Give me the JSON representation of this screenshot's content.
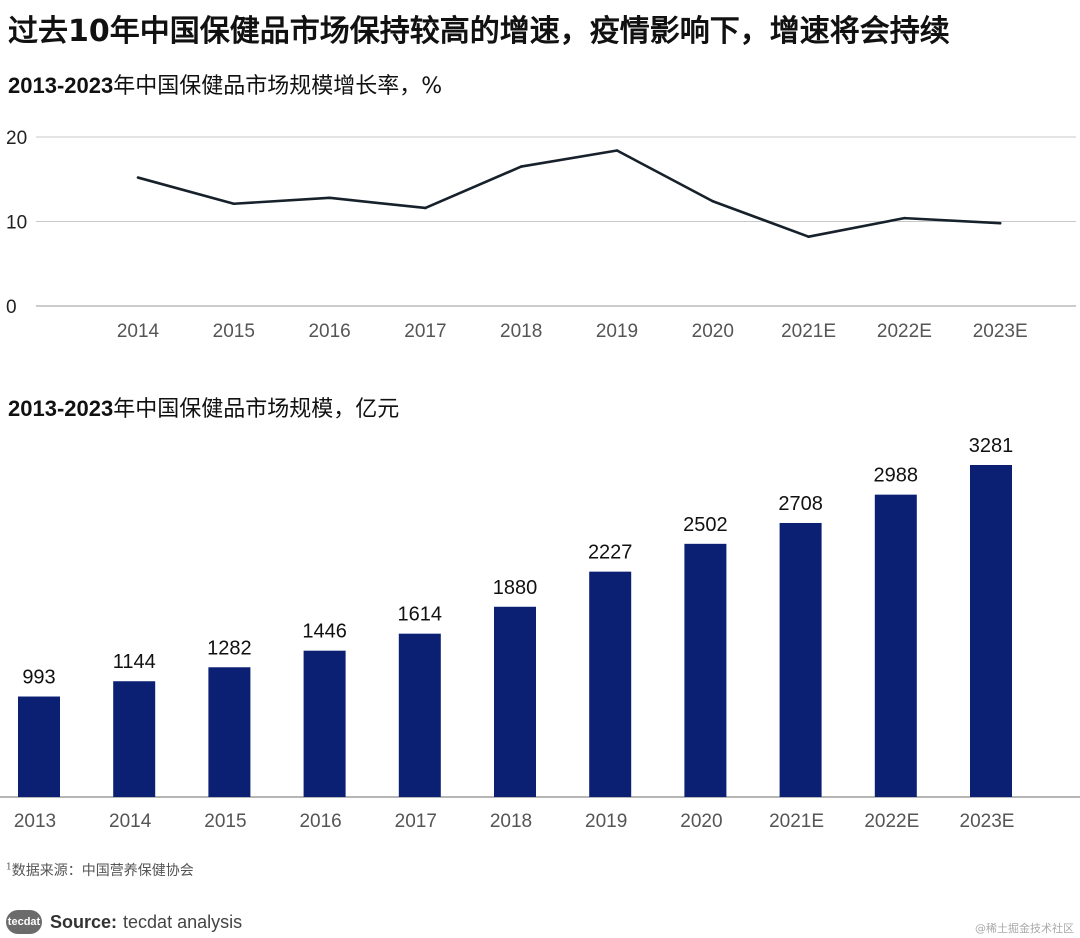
{
  "headline": "过去10年中国保健品市场保持较高的增速，疫情影响下，增速将会持续",
  "chart_data": [
    {
      "type": "line",
      "title_bold": "2013-2023",
      "title_rest": "年中国保健品市场规模增长率，%",
      "categories": [
        "2014",
        "2015",
        "2016",
        "2017",
        "2018",
        "2019",
        "2020",
        "2021E",
        "2022E",
        "2023E"
      ],
      "values": [
        15.2,
        12.1,
        12.8,
        11.6,
        16.5,
        18.4,
        12.4,
        8.2,
        10.4,
        9.8
      ],
      "yticks": [
        0,
        10,
        20
      ],
      "ylim": [
        0,
        20
      ],
      "grid": true,
      "color": "#17212b"
    },
    {
      "type": "bar",
      "title_bold": "2013-2023",
      "title_rest": "年中国保健品市场规模，亿元",
      "categories": [
        "2013",
        "2014",
        "2015",
        "2016",
        "2017",
        "2018",
        "2019",
        "2020",
        "2021E",
        "2022E",
        "2023E"
      ],
      "values": [
        993,
        1144,
        1282,
        1446,
        1614,
        1880,
        2227,
        2502,
        2708,
        2988,
        3281
      ],
      "color": "#0b1f73"
    }
  ],
  "footnote": {
    "marker": "1",
    "text": "数据来源：中国营养保健协会"
  },
  "source": {
    "logo": "tecdat",
    "label": "Source:",
    "text": "tecdat analysis"
  },
  "watermark": "@稀土掘金技术社区"
}
